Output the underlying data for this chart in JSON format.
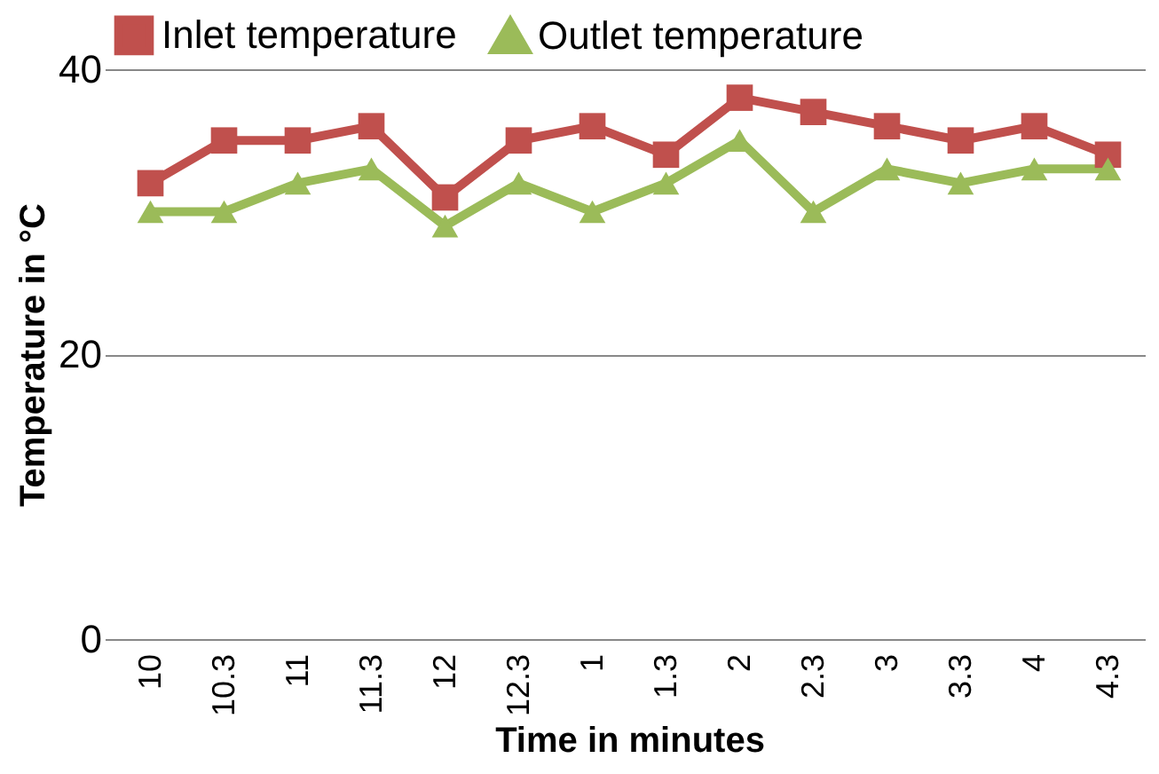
{
  "chart_data": {
    "type": "line",
    "xlabel": "Time in minutes",
    "ylabel": "Temperature in °C",
    "categories": [
      "10",
      "10.3",
      "11",
      "11.3",
      "12",
      "12.3",
      "1",
      "1.3",
      "2",
      "2.3",
      "3",
      "3.3",
      "4",
      "4.3"
    ],
    "series": [
      {
        "name": "Inlet temperature",
        "color": "#c0504d",
        "marker": "square",
        "values": [
          32,
          35,
          35,
          36,
          31,
          35,
          36,
          34,
          38,
          37,
          36,
          35,
          36,
          34
        ]
      },
      {
        "name": "Outlet temperature",
        "color": "#9bbb59",
        "marker": "triangle",
        "values": [
          30,
          30,
          32,
          33,
          29,
          32,
          30,
          32,
          35,
          30,
          33,
          32,
          33,
          33
        ]
      }
    ],
    "ylim": [
      0,
      40
    ],
    "yticks": [
      0,
      20,
      40
    ],
    "grid": "y",
    "legend": "top"
  }
}
